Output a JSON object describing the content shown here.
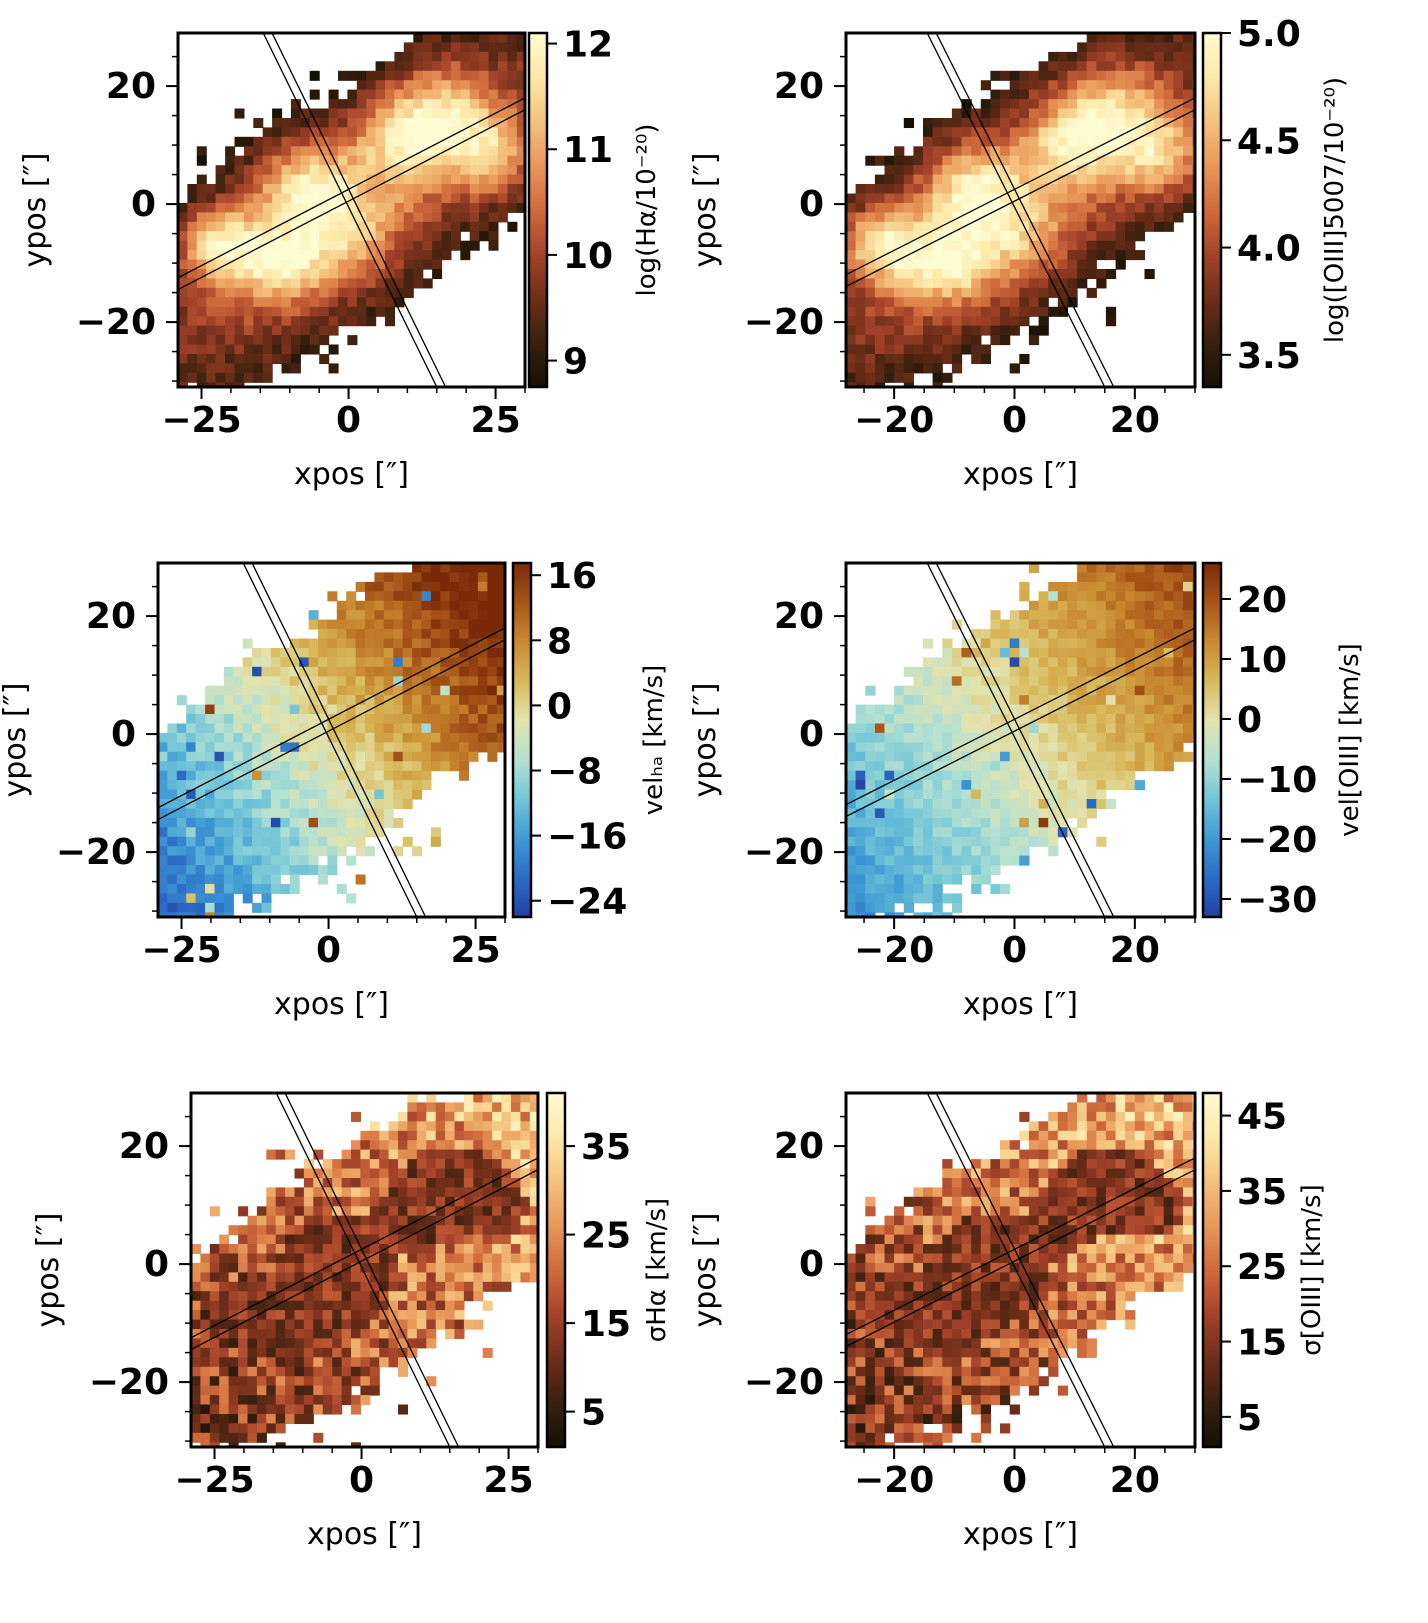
{
  "colors": {
    "heat": [
      "#141005",
      "#3a200e",
      "#6e2e18",
      "#a5432a",
      "#cf6b3c",
      "#e8975a",
      "#f4c27f",
      "#fde9a8",
      "#fffbd2"
    ],
    "rdylbu": [
      "#2340a0",
      "#2b6cc6",
      "#3e9ad4",
      "#73c6d8",
      "#b4e1d2",
      "#e3e3ad",
      "#d8b95a",
      "#c98930",
      "#a65418",
      "#7a2a08"
    ],
    "frame": "#000000",
    "slit": "#000000"
  },
  "chart_data": [
    {
      "type": "heatmap",
      "id": "halpha-flux",
      "xlabel": "xpos [″]",
      "ylabel": "ypos [″]",
      "xlim": [
        -29,
        30
      ],
      "ylim": [
        -31,
        29
      ],
      "xticks": [
        {
          "value": -25,
          "label": "−25"
        },
        {
          "value": 0,
          "label": "0"
        },
        {
          "value": 25,
          "label": "25"
        }
      ],
      "yticks": [
        {
          "value": 20,
          "label": "20"
        },
        {
          "value": 0,
          "label": "0"
        },
        {
          "value": -20,
          "label": "−20"
        }
      ],
      "colorbar": {
        "label": "log(Hα/10⁻²⁰)",
        "cmap": "heat",
        "range": [
          8.75,
          12.1
        ],
        "ticks": [
          {
            "value": 12,
            "label": "12"
          },
          {
            "value": 11,
            "label": "11"
          },
          {
            "value": 10,
            "label": "10"
          },
          {
            "value": 9,
            "label": "9"
          }
        ]
      }
    },
    {
      "type": "heatmap",
      "id": "oiii-flux",
      "xlabel": "xpos [″]",
      "ylabel": "ypos [″]",
      "xlim": [
        -28,
        30
      ],
      "ylim": [
        -31,
        29
      ],
      "xticks": [
        {
          "value": -20,
          "label": "−20"
        },
        {
          "value": 0,
          "label": "0"
        },
        {
          "value": 20,
          "label": "20"
        }
      ],
      "yticks": [
        {
          "value": 20,
          "label": "20"
        },
        {
          "value": 0,
          "label": "0"
        },
        {
          "value": -20,
          "label": "−20"
        }
      ],
      "colorbar": {
        "label": "log([OIII]5007/10⁻²⁰)",
        "cmap": "heat",
        "range": [
          3.35,
          5.0
        ],
        "ticks": [
          {
            "value": 5.0,
            "label": "5.0"
          },
          {
            "value": 4.5,
            "label": "4.5"
          },
          {
            "value": 4.0,
            "label": "4.0"
          },
          {
            "value": 3.5,
            "label": "3.5"
          }
        ]
      }
    },
    {
      "type": "heatmap",
      "id": "halpha-velocity",
      "xlabel": "xpos [″]",
      "ylabel": "ypos [″]",
      "xlim": [
        -29,
        30
      ],
      "ylim": [
        -31,
        29
      ],
      "xticks": [
        {
          "value": -25,
          "label": "−25"
        },
        {
          "value": 0,
          "label": "0"
        },
        {
          "value": 25,
          "label": "25"
        }
      ],
      "yticks": [
        {
          "value": 20,
          "label": "20"
        },
        {
          "value": 0,
          "label": "0"
        },
        {
          "value": -20,
          "label": "−20"
        }
      ],
      "colorbar": {
        "label": "velₕₐ [km/s]",
        "cmap": "rdylbu",
        "range": [
          -26,
          17.5
        ],
        "ticks": [
          {
            "value": 16,
            "label": "16"
          },
          {
            "value": 8,
            "label": "8"
          },
          {
            "value": 0,
            "label": "0"
          },
          {
            "value": -8,
            "label": "−8"
          },
          {
            "value": -16,
            "label": "−16"
          },
          {
            "value": -24,
            "label": "−24"
          }
        ]
      }
    },
    {
      "type": "heatmap",
      "id": "oiii-velocity",
      "xlabel": "xpos [″]",
      "ylabel": "ypos [″]",
      "xlim": [
        -28,
        30
      ],
      "ylim": [
        -31,
        29
      ],
      "xticks": [
        {
          "value": -20,
          "label": "−20"
        },
        {
          "value": 0,
          "label": "0"
        },
        {
          "value": 20,
          "label": "20"
        }
      ],
      "yticks": [
        {
          "value": 20,
          "label": "20"
        },
        {
          "value": 0,
          "label": "0"
        },
        {
          "value": -20,
          "label": "−20"
        }
      ],
      "colorbar": {
        "label": "vel[OIII] [km/s]",
        "cmap": "rdylbu",
        "range": [
          -33,
          26
        ],
        "ticks": [
          {
            "value": 20,
            "label": "20"
          },
          {
            "value": 10,
            "label": "10"
          },
          {
            "value": 0,
            "label": "0"
          },
          {
            "value": -10,
            "label": "−10"
          },
          {
            "value": -20,
            "label": "−20"
          },
          {
            "value": -30,
            "label": "−30"
          }
        ]
      }
    },
    {
      "type": "heatmap",
      "id": "halpha-dispersion",
      "xlabel": "xpos [″]",
      "ylabel": "ypos [″]",
      "xlim": [
        -29,
        30
      ],
      "ylim": [
        -31,
        29
      ],
      "xticks": [
        {
          "value": -25,
          "label": "−25"
        },
        {
          "value": 0,
          "label": "0"
        },
        {
          "value": 25,
          "label": "25"
        }
      ],
      "yticks": [
        {
          "value": 20,
          "label": "20"
        },
        {
          "value": 0,
          "label": "0"
        },
        {
          "value": -20,
          "label": "−20"
        }
      ],
      "colorbar": {
        "label": "σHα [km/s]",
        "cmap": "heat",
        "range": [
          1,
          41
        ],
        "ticks": [
          {
            "value": 35,
            "label": "35"
          },
          {
            "value": 25,
            "label": "25"
          },
          {
            "value": 15,
            "label": "15"
          },
          {
            "value": 5,
            "label": "5"
          }
        ]
      }
    },
    {
      "type": "heatmap",
      "id": "oiii-dispersion",
      "xlabel": "xpos [″]",
      "ylabel": "ypos [″]",
      "xlim": [
        -28,
        30
      ],
      "ylim": [
        -31,
        29
      ],
      "xticks": [
        {
          "value": -20,
          "label": "−20"
        },
        {
          "value": 0,
          "label": "0"
        },
        {
          "value": 20,
          "label": "20"
        }
      ],
      "yticks": [
        {
          "value": 20,
          "label": "20"
        },
        {
          "value": 0,
          "label": "0"
        },
        {
          "value": -20,
          "label": "−20"
        }
      ],
      "colorbar": {
        "label": "σ[OIII] [km/s]",
        "cmap": "heat",
        "range": [
          1,
          48
        ],
        "ticks": [
          {
            "value": 45,
            "label": "45"
          },
          {
            "value": 35,
            "label": "35"
          },
          {
            "value": 25,
            "label": "25"
          },
          {
            "value": 15,
            "label": "15"
          },
          {
            "value": 5,
            "label": "5"
          }
        ]
      }
    }
  ]
}
